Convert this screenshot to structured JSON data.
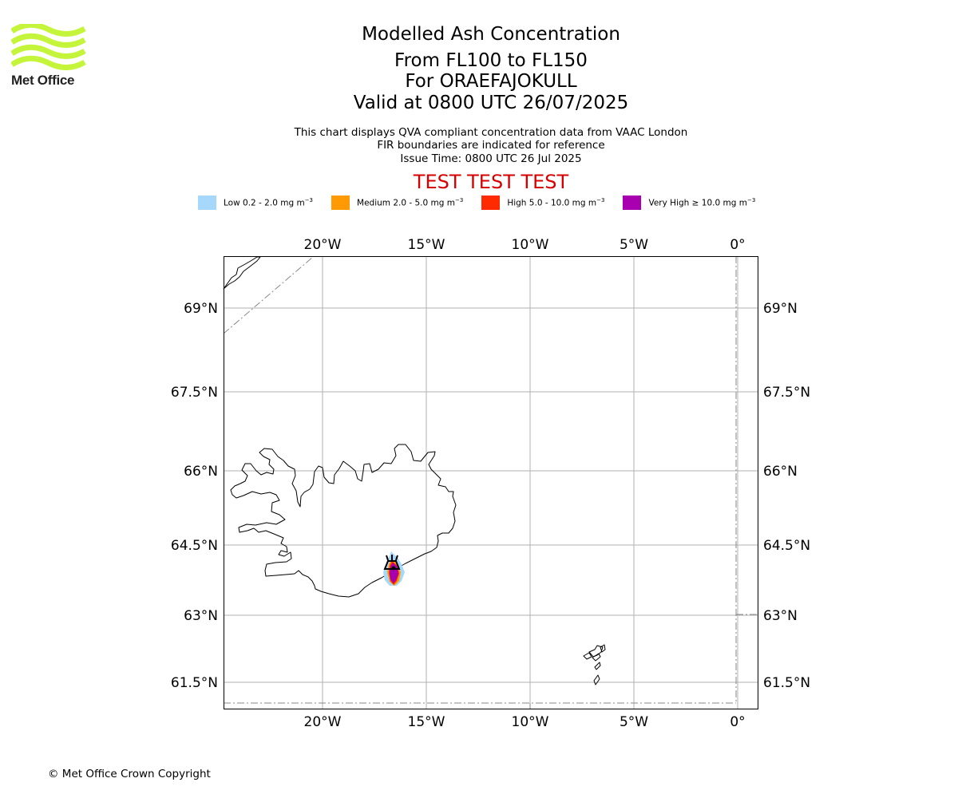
{
  "branding": {
    "logo_text": "Met Office",
    "logo_color": "#c5f53a"
  },
  "header": {
    "title": "Modelled Ash Concentration",
    "levels": "From FL100 to FL150",
    "volcano": "For ORAEFAJOKULL",
    "valid": "Valid at 0800 UTC 26/07/2025",
    "note1": "This chart displays QVA compliant concentration data from VAAC London",
    "note2": "FIR boundaries are indicated for reference",
    "issue": "Issue Time: 0800 UTC 26 Jul 2025",
    "test_banner": "TEST TEST TEST",
    "test_color": "#d60000"
  },
  "legend": {
    "items": [
      {
        "label": "Low 0.2 - 2.0 mg m",
        "sup": "−3",
        "color": "#a6d8fc"
      },
      {
        "label": "Medium 2.0 - 5.0 mg m",
        "sup": "−3",
        "color": "#ff9a05"
      },
      {
        "label": "High 5.0 - 10.0 mg m",
        "sup": "−3",
        "color": "#ff2a00"
      },
      {
        "label": "Very High ≥ 10.0 mg m",
        "sup": "−3",
        "color": "#a800b0"
      }
    ]
  },
  "map": {
    "lon_labels": [
      "20°W",
      "15°W",
      "10°W",
      "5°W",
      "0°"
    ],
    "lat_labels": [
      "69°N",
      "67.5°N",
      "66°N",
      "64.5°N",
      "63°N",
      "61.5°N"
    ],
    "volcano_marker": "volcano-triangle"
  },
  "footer": {
    "copyright": "© Met Office Crown Copyright"
  }
}
